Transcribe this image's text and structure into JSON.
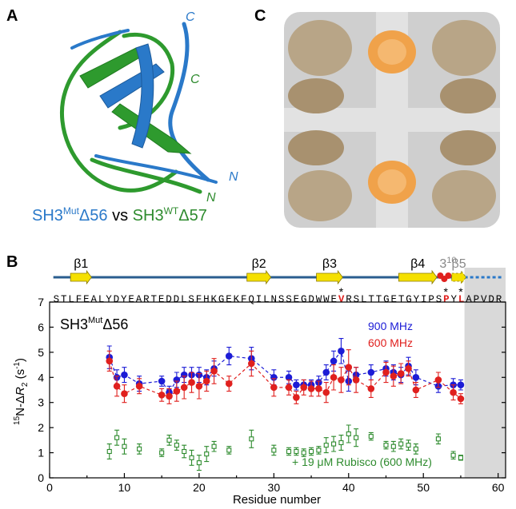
{
  "panels": {
    "A": {
      "label": "A",
      "caption": [
        "SH3",
        "Mut",
        "Δ56",
        " vs ",
        "SH3",
        "WT",
        "Δ57"
      ],
      "termini": [
        "C",
        "C",
        "N",
        "N"
      ]
    },
    "C": {
      "label": "C"
    }
  },
  "chart_data": {
    "type": "scatter",
    "panel_label": "B",
    "annotation": [
      "SH3",
      "Mut",
      "Δ56"
    ],
    "xlabel": "Residue number",
    "ylabel_parts": [
      "15",
      "N-Δ",
      "R",
      "2",
      " (s",
      "-1",
      ")"
    ],
    "xlim": [
      0,
      61
    ],
    "ylim": [
      0,
      7
    ],
    "xticks": [
      0,
      10,
      20,
      30,
      40,
      50,
      60
    ],
    "xminor_ticks": [
      5,
      15,
      25,
      35,
      45,
      55
    ],
    "yticks": [
      0,
      1,
      2,
      3,
      4,
      5,
      6,
      7
    ],
    "shade": {
      "from": 55.5,
      "to": 61,
      "color": "#d9d9d9"
    },
    "sequence_segments": [
      "STLFEALYDYEARTEDDLSFHKGEKFQILNSSEGDWWE",
      "V",
      "RSLTTGETGYIPS",
      "P",
      "Y",
      "L",
      "APVDR"
    ],
    "sequence_highlight": [
      1,
      3,
      5
    ],
    "asterisks": {
      "symbol": "*",
      "residues": [
        39,
        53,
        55
      ]
    },
    "secondary_structure": [
      {
        "label": "β1",
        "start": 2.8,
        "end": 5.6,
        "kind": "strand"
      },
      {
        "label": "β2",
        "start": 26.4,
        "end": 29.6,
        "kind": "strand"
      },
      {
        "label": "β3",
        "start": 35.7,
        "end": 39.2,
        "kind": "strand"
      },
      {
        "label": "β4",
        "start": 46.7,
        "end": 51.8,
        "kind": "strand"
      },
      {
        "label": [
          "3",
          "10"
        ],
        "start": 52,
        "end": 53.6,
        "kind": "helix"
      },
      {
        "label": "β5",
        "start": 53.8,
        "end": 55.7,
        "kind": "strand-dashed"
      }
    ],
    "x": [
      8,
      9,
      10,
      12,
      15,
      16,
      17,
      18,
      19,
      20,
      21,
      22,
      24,
      27,
      30,
      32,
      33,
      34,
      35,
      36,
      37,
      38,
      39,
      40,
      41,
      43,
      45,
      46,
      47,
      48,
      49,
      52,
      54,
      55
    ],
    "series": [
      {
        "name": "900 MHz",
        "color": "#1c1cd6",
        "marker": "circle",
        "line": "dashed",
        "values": [
          4.8,
          4.0,
          4.1,
          3.75,
          3.85,
          3.4,
          3.9,
          4.1,
          4.1,
          4.1,
          4.0,
          4.35,
          4.85,
          4.75,
          4.0,
          4.0,
          3.7,
          3.7,
          3.7,
          3.8,
          4.2,
          4.65,
          5.05,
          3.85,
          4.1,
          4.2,
          4.35,
          4.2,
          4.1,
          4.45,
          4.0,
          3.65,
          3.7,
          3.7
        ],
        "errors": [
          0.45,
          0.3,
          0.3,
          0.3,
          0.2,
          0.25,
          0.3,
          0.3,
          0.3,
          0.3,
          0.3,
          0.3,
          0.35,
          0.45,
          0.3,
          0.25,
          0.2,
          0.2,
          0.2,
          0.25,
          0.3,
          0.4,
          0.5,
          0.4,
          0.3,
          0.3,
          0.3,
          0.3,
          0.3,
          0.35,
          0.3,
          0.25,
          0.25,
          0.2
        ]
      },
      {
        "name": "600 MHz",
        "color": "#e0201e",
        "marker": "circle",
        "line": "dashed",
        "values": [
          4.65,
          3.65,
          3.35,
          3.65,
          3.3,
          3.25,
          3.45,
          3.6,
          3.8,
          3.65,
          3.85,
          4.25,
          3.75,
          4.55,
          3.6,
          3.6,
          3.2,
          3.6,
          3.55,
          3.55,
          3.4,
          4.0,
          3.9,
          4.4,
          3.9,
          3.55,
          4.2,
          4.05,
          4.15,
          4.35,
          3.5,
          3.9,
          3.4,
          3.15
        ],
        "errors": [
          0.4,
          0.4,
          0.35,
          0.3,
          0.25,
          0.3,
          0.4,
          0.45,
          0.4,
          0.5,
          0.4,
          0.5,
          0.3,
          0.5,
          0.35,
          0.3,
          0.25,
          0.3,
          0.3,
          0.3,
          0.4,
          0.5,
          0.5,
          0.7,
          0.5,
          0.35,
          0.4,
          0.4,
          0.4,
          0.3,
          0.3,
          0.3,
          0.3,
          0.2
        ]
      },
      {
        "name": "+ 19 μM Rubisco (600 MHz)",
        "color": "#2e8b2e",
        "marker": "open-square",
        "line": "none",
        "values": [
          1.05,
          1.6,
          1.25,
          1.15,
          1.0,
          1.5,
          1.3,
          1.05,
          0.8,
          0.6,
          0.95,
          1.25,
          1.1,
          1.55,
          1.1,
          1.05,
          1.05,
          1.0,
          1.05,
          1.1,
          1.3,
          1.35,
          1.4,
          1.75,
          1.6,
          1.65,
          1.3,
          1.25,
          1.35,
          1.3,
          1.15,
          1.55,
          0.9,
          0.8
        ],
        "errors": [
          0.3,
          0.3,
          0.3,
          0.2,
          0.15,
          0.2,
          0.2,
          0.25,
          0.3,
          0.3,
          0.3,
          0.2,
          0.15,
          0.35,
          0.2,
          0.15,
          0.15,
          0.15,
          0.15,
          0.15,
          0.3,
          0.3,
          0.3,
          0.35,
          0.35,
          0.15,
          0.15,
          0.2,
          0.2,
          0.2,
          0.2,
          0.2,
          0.15,
          0.1
        ]
      }
    ]
  }
}
